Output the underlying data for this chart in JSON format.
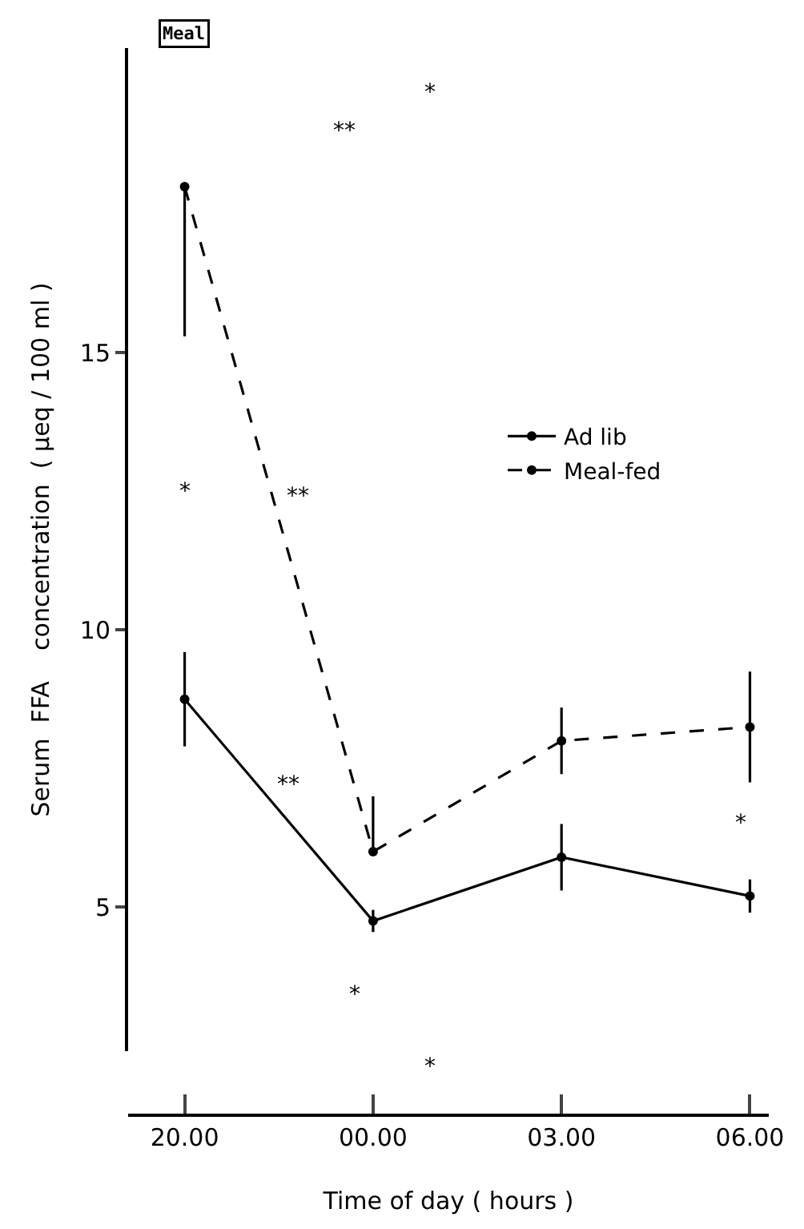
{
  "chart_data": {
    "type": "line",
    "xlabel": "Time of day ( hours )",
    "ylabel": "Serum  FFA    concentration  ( μeq / 100 ml )",
    "categories": [
      "20.00",
      "00.00",
      "03.00",
      "06.00"
    ],
    "ylim": [
      2.4,
      20.5
    ],
    "yticks": [
      5,
      10,
      15
    ],
    "series": [
      {
        "name": "Ad lib",
        "color": "#000000",
        "line_style": "solid",
        "values": [
          8.75,
          4.75,
          5.9,
          5.2
        ],
        "errors": [
          0.85,
          0.2,
          0.6,
          0.3
        ]
      },
      {
        "name": "Meal-fed",
        "color": "#000000",
        "line_style": "dashed",
        "values": [
          18.0,
          6.0,
          8.0,
          8.25
        ],
        "errors": [
          [
            15.3,
            18.0
          ],
          [
            6.0,
            7.0
          ],
          0.6,
          1.0
        ]
      }
    ],
    "marker": "circle",
    "legend": "right",
    "annotations": [
      "Meal",
      "*",
      "**",
      "*",
      "**",
      "**",
      "*",
      "*",
      "*"
    ]
  }
}
